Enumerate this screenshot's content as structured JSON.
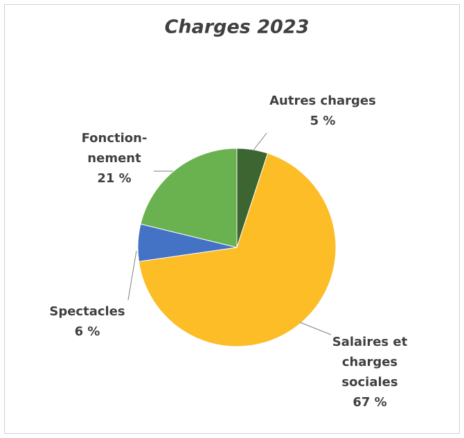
{
  "chart_data": {
    "type": "pie",
    "title": "Charges 2023",
    "categories": [
      "Autres charges",
      "Salaires et charges sociales",
      "Spectacles",
      "Fonction-nement"
    ],
    "values": [
      5,
      67,
      6,
      21
    ],
    "value_labels": [
      "5 %",
      "67 %",
      "6 %",
      "21 %"
    ],
    "colors": [
      "#3c6532",
      "#fcbd27",
      "#4472c4",
      "#6ab150"
    ]
  }
}
